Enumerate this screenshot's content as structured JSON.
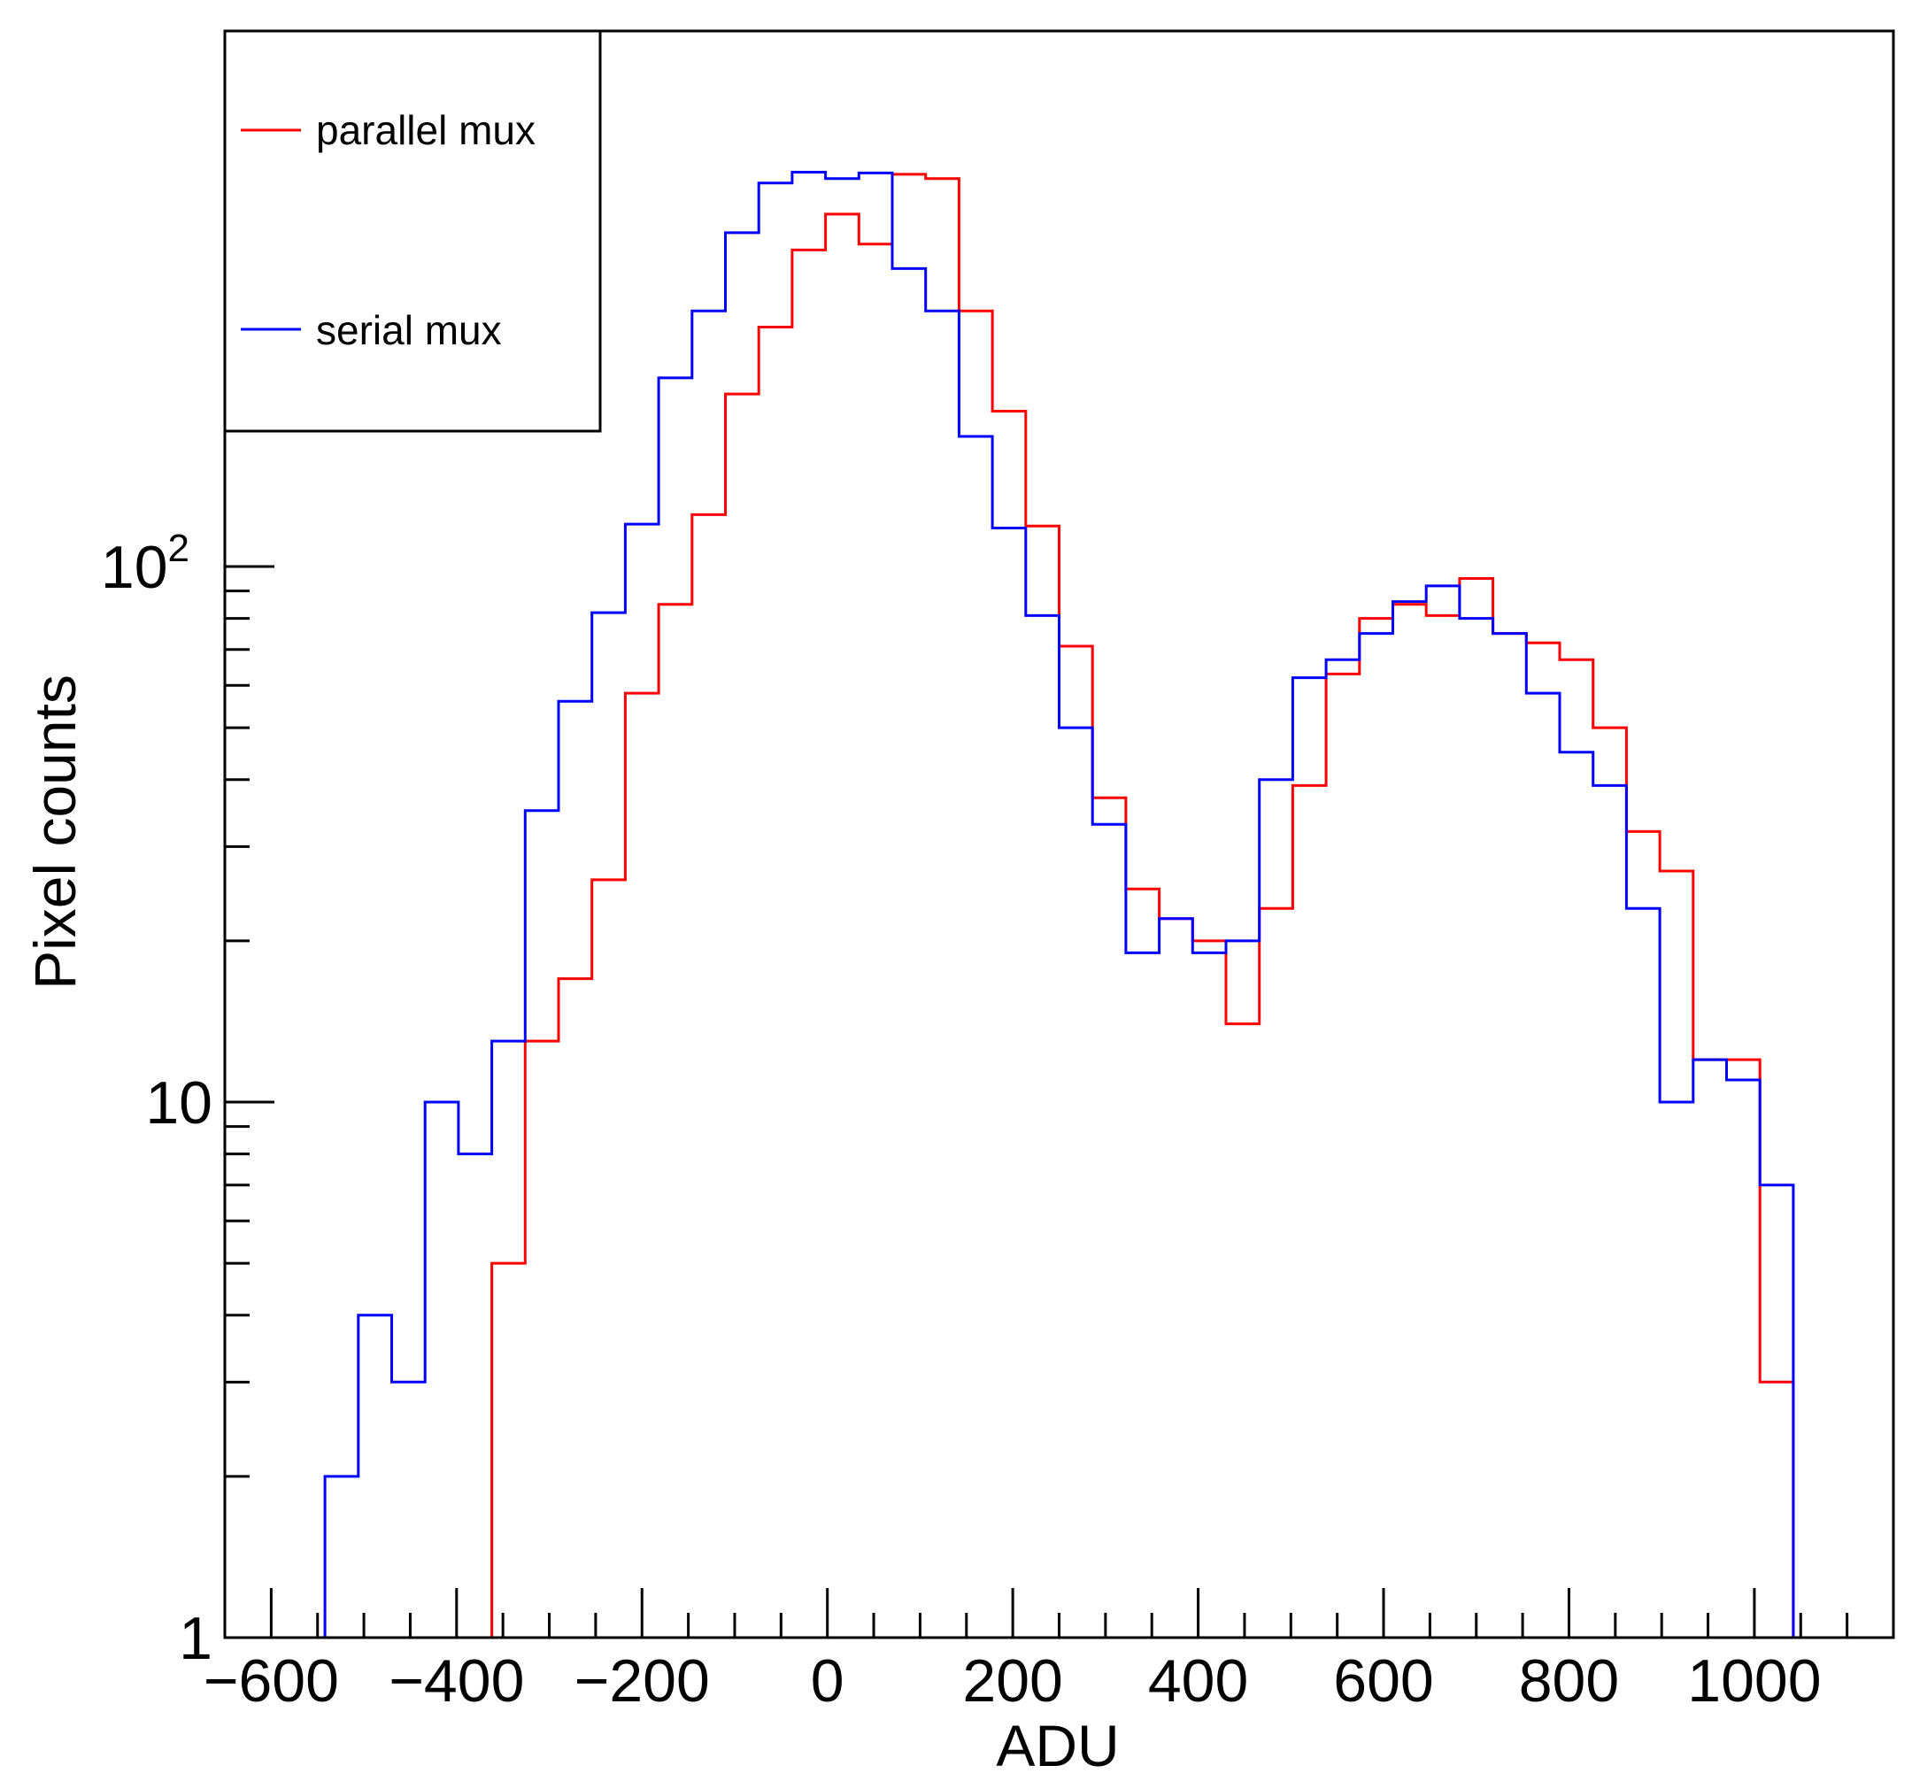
{
  "chart_data": {
    "type": "step-histogram",
    "xlabel": "ADU",
    "ylabel": "Pixel counts",
    "xlim": [
      -650,
      1150
    ],
    "ylim": [
      1,
      1000
    ],
    "y_scale": "log",
    "bin_width": 36,
    "bin_start": -650,
    "x_ticks": [
      -600,
      -400,
      -200,
      0,
      200,
      400,
      600,
      800,
      1000
    ],
    "x_tick_labels": [
      "−600",
      "−400",
      "−200",
      "0",
      "200",
      "400",
      "600",
      "800",
      "1000"
    ],
    "y_tick_labels": [
      {
        "value": 1,
        "label": "1"
      },
      {
        "value": 10,
        "label": "10"
      },
      {
        "value": 100,
        "label": "10",
        "sup": "2"
      }
    ],
    "legend": {
      "position": "top-left"
    },
    "series": [
      {
        "name": "parallel mux",
        "color": "#ff0000",
        "values": [
          1,
          1,
          1,
          1,
          1,
          1,
          1,
          1,
          5,
          13,
          17,
          26,
          58,
          85,
          125,
          210,
          280,
          390,
          455,
          400,
          540,
          530,
          300,
          195,
          119,
          71,
          37,
          25,
          22,
          20,
          14,
          23,
          39,
          63,
          80,
          85,
          81,
          95,
          75,
          72,
          67,
          50,
          32,
          27,
          12,
          12,
          3,
          1,
          1,
          1
        ]
      },
      {
        "name": "serial mux",
        "color": "#0000ff",
        "values": [
          1,
          1,
          1,
          2,
          4,
          3,
          10,
          8,
          13,
          35,
          56,
          82,
          120,
          225,
          300,
          420,
          520,
          545,
          530,
          543,
          360,
          300,
          175,
          118,
          81,
          50,
          33,
          19,
          22,
          19,
          20,
          40,
          62,
          67,
          75,
          86,
          92,
          80,
          75,
          58,
          45,
          39,
          23,
          10,
          12,
          11,
          7,
          1,
          1,
          1
        ]
      }
    ]
  }
}
